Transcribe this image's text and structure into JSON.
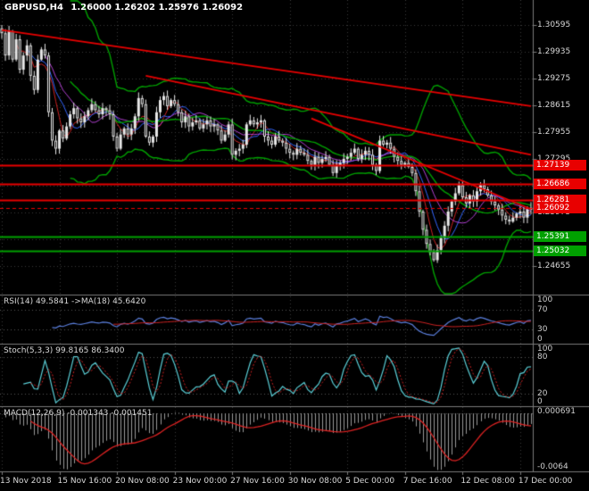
{
  "window": {
    "symbol_timeframe": "GBPUSD,H4",
    "ohlc": "1.26000 1.26202 1.25976 1.26092"
  },
  "colors": {
    "background": "#000000",
    "grid": "#3a3a3a",
    "candle": "#e8e8e8",
    "bear_fill": "#000000",
    "band_green": "#00a000",
    "level_red": "#e80000",
    "level_green": "#00a000",
    "ma_red": "#cc2222",
    "ma_blue": "#3366ff",
    "ma_purple": "#b040d0",
    "rsi_line": "#5b7fdd",
    "rsi_ma": "#cc2222",
    "stoch_k": "#5bd0d8",
    "stoch_d": "#cc2222",
    "macd_hist": "#9a9a9a",
    "macd_signal": "#dd2222",
    "separator": "#7a7a7a",
    "sub_level": "#565656"
  },
  "price_axis": {
    "labels": [
      {
        "text": "1.30595",
        "price": 1.30595
      },
      {
        "text": "1.29935",
        "price": 1.29935
      },
      {
        "text": "1.29275",
        "price": 1.29275
      },
      {
        "text": "1.28615",
        "price": 1.28615
      },
      {
        "text": "1.27955",
        "price": 1.27955
      },
      {
        "text": "1.27295",
        "price": 1.27295
      },
      {
        "text": "1.25975",
        "price": 1.25975
      },
      {
        "text": "1.24655",
        "price": 1.24655
      }
    ],
    "badges": [
      {
        "text": "1.27139",
        "price": 1.27139,
        "type": "resistance-level",
        "color": "#e80000"
      },
      {
        "text": "1.26686",
        "price": 1.26686,
        "type": "resistance-level",
        "color": "#e80000"
      },
      {
        "text": "1.26281",
        "price": 1.26281,
        "type": "resistance-level",
        "color": "#e80000"
      },
      {
        "text": "1.26092",
        "price": 1.26092,
        "type": "current-price",
        "color": "#e80000"
      },
      {
        "text": "1.25391",
        "price": 1.25391,
        "type": "support-level",
        "color": "#00a000"
      },
      {
        "text": "1.25032",
        "price": 1.25032,
        "type": "support-level",
        "color": "#00a000"
      }
    ],
    "gridline_prices": [
      1.30595,
      1.29935,
      1.29275,
      1.28615,
      1.27955,
      1.27295,
      1.26635,
      1.25975,
      1.25315,
      1.24655
    ]
  },
  "time_axis": {
    "labels": [
      {
        "text": "13 Nov 2018",
        "bar": 0
      },
      {
        "text": "15 Nov 16:00",
        "bar": 16
      },
      {
        "text": "20 Nov 08:00",
        "bar": 32
      },
      {
        "text": "23 Nov 00:00",
        "bar": 48
      },
      {
        "text": "27 Nov 16:00",
        "bar": 64
      },
      {
        "text": "30 Nov 08:00",
        "bar": 80
      },
      {
        "text": "5 Dec 00:00",
        "bar": 96
      },
      {
        "text": "7 Dec 16:00",
        "bar": 112
      },
      {
        "text": "12 Dec 08:00",
        "bar": 128
      },
      {
        "text": "17 Dec 00:00",
        "bar": 144
      }
    ]
  },
  "panes": {
    "rsi": {
      "label": "RSI(14) 49.5841 ->MA(18) 45.6420",
      "period": 14,
      "ma_period": 18,
      "current": 49.5841,
      "ma_current": 45.642,
      "levels": [
        70,
        30
      ],
      "range": [
        0,
        100
      ],
      "axis_labels": [
        {
          "text": "100",
          "value": 100
        },
        {
          "text": "70",
          "value": 70
        },
        {
          "text": "30",
          "value": 30
        },
        {
          "text": "0",
          "value": 0
        }
      ]
    },
    "stoch": {
      "label": "Stoch(5,3,3) 99.8165 86.3400",
      "k_current": 99.8165,
      "d_current": 86.34,
      "levels": [
        80,
        20
      ],
      "range": [
        0,
        100
      ],
      "axis_labels": [
        {
          "text": "100",
          "value": 100
        },
        {
          "text": "80",
          "value": 80
        },
        {
          "text": "20",
          "value": 20
        },
        {
          "text": "0",
          "value": 0
        }
      ]
    },
    "macd": {
      "label": "MACD(12,26,9) -0.001343 -0.001451",
      "macd_current": -0.001343,
      "signal_current": -0.001451,
      "range": [
        -0.0064,
        0.000691
      ],
      "axis_labels": [
        {
          "text": "0.000691",
          "value": 0.000691
        },
        {
          "text": "-0.0064",
          "value": -0.0064
        }
      ]
    }
  },
  "chart_data": {
    "type": "candlestick",
    "symbol": "GBPUSD",
    "timeframe": "H4",
    "title": "GBPUSD,H4 1.26000 1.26202 1.25976 1.26092",
    "y_range": [
      1.2395,
      1.3122
    ],
    "closes": [
      1.304,
      1.2985,
      1.3045,
      1.2975,
      1.3025,
      1.295,
      1.2985,
      1.301,
      1.2935,
      1.29,
      1.2975,
      1.3,
      1.2985,
      1.2845,
      1.2775,
      1.2755,
      1.28,
      1.278,
      1.281,
      1.284,
      1.2855,
      1.283,
      1.282,
      1.2835,
      1.285,
      1.2865,
      1.285,
      1.284,
      1.2855,
      1.285,
      1.284,
      1.2785,
      1.2755,
      1.279,
      1.2805,
      1.279,
      1.2805,
      1.2835,
      1.288,
      1.2865,
      1.2785,
      1.277,
      1.2785,
      1.2845,
      1.2875,
      1.2885,
      1.286,
      1.2875,
      1.2865,
      1.2845,
      1.282,
      1.2835,
      1.281,
      1.282,
      1.2825,
      1.2805,
      1.2815,
      1.2825,
      1.281,
      1.2815,
      1.28,
      1.2775,
      1.279,
      1.2815,
      1.274,
      1.275,
      1.2755,
      1.2765,
      1.2815,
      1.2825,
      1.2815,
      1.282,
      1.2825,
      1.2785,
      1.2775,
      1.2765,
      1.2785,
      1.2775,
      1.277,
      1.2755,
      1.2745,
      1.274,
      1.2755,
      1.2745,
      1.274,
      1.2725,
      1.2715,
      1.2735,
      1.272,
      1.273,
      1.2735,
      1.2715,
      1.2695,
      1.2715,
      1.272,
      1.273,
      1.2735,
      1.2745,
      1.2755,
      1.273,
      1.274,
      1.275,
      1.274,
      1.2715,
      1.27,
      1.2775,
      1.2765,
      1.277,
      1.2755,
      1.2735,
      1.2725,
      1.2715,
      1.272,
      1.271,
      1.2695,
      1.265,
      1.26,
      1.2555,
      1.252,
      1.25,
      1.248,
      1.2505,
      1.2535,
      1.2565,
      1.26,
      1.2625,
      1.2645,
      1.2665,
      1.2635,
      1.262,
      1.264,
      1.2625,
      1.265,
      1.2665,
      1.2655,
      1.264,
      1.2625,
      1.2615,
      1.2605,
      1.259,
      1.258,
      1.2575,
      1.2585,
      1.2595,
      1.26,
      1.2585,
      1.2605,
      1.26092
    ],
    "last_ohlc": {
      "open": 1.26,
      "high": 1.26202,
      "low": 1.25976,
      "close": 1.26092
    },
    "levels": {
      "resistance": [
        1.27139,
        1.26686,
        1.26281
      ],
      "support": [
        1.25391,
        1.25032
      ]
    },
    "trendlines": [
      {
        "from_bar": 0,
        "from_price": 1.3048,
        "to_bar": 147,
        "to_price": 1.286
      },
      {
        "from_bar": 40,
        "from_price": 1.2935,
        "to_bar": 147,
        "to_price": 1.274
      },
      {
        "from_bar": 86,
        "from_price": 1.283,
        "to_bar": 147,
        "to_price": 1.2606
      }
    ],
    "bollinger": {
      "period": 20,
      "deviation": 2.5
    },
    "moving_averages": [
      {
        "period": 5,
        "color": "#cc2222"
      },
      {
        "period": 8,
        "color": "#3366ff"
      },
      {
        "period": 13,
        "color": "#b040d0"
      },
      {
        "period": 20,
        "color": "#00a000"
      }
    ]
  }
}
